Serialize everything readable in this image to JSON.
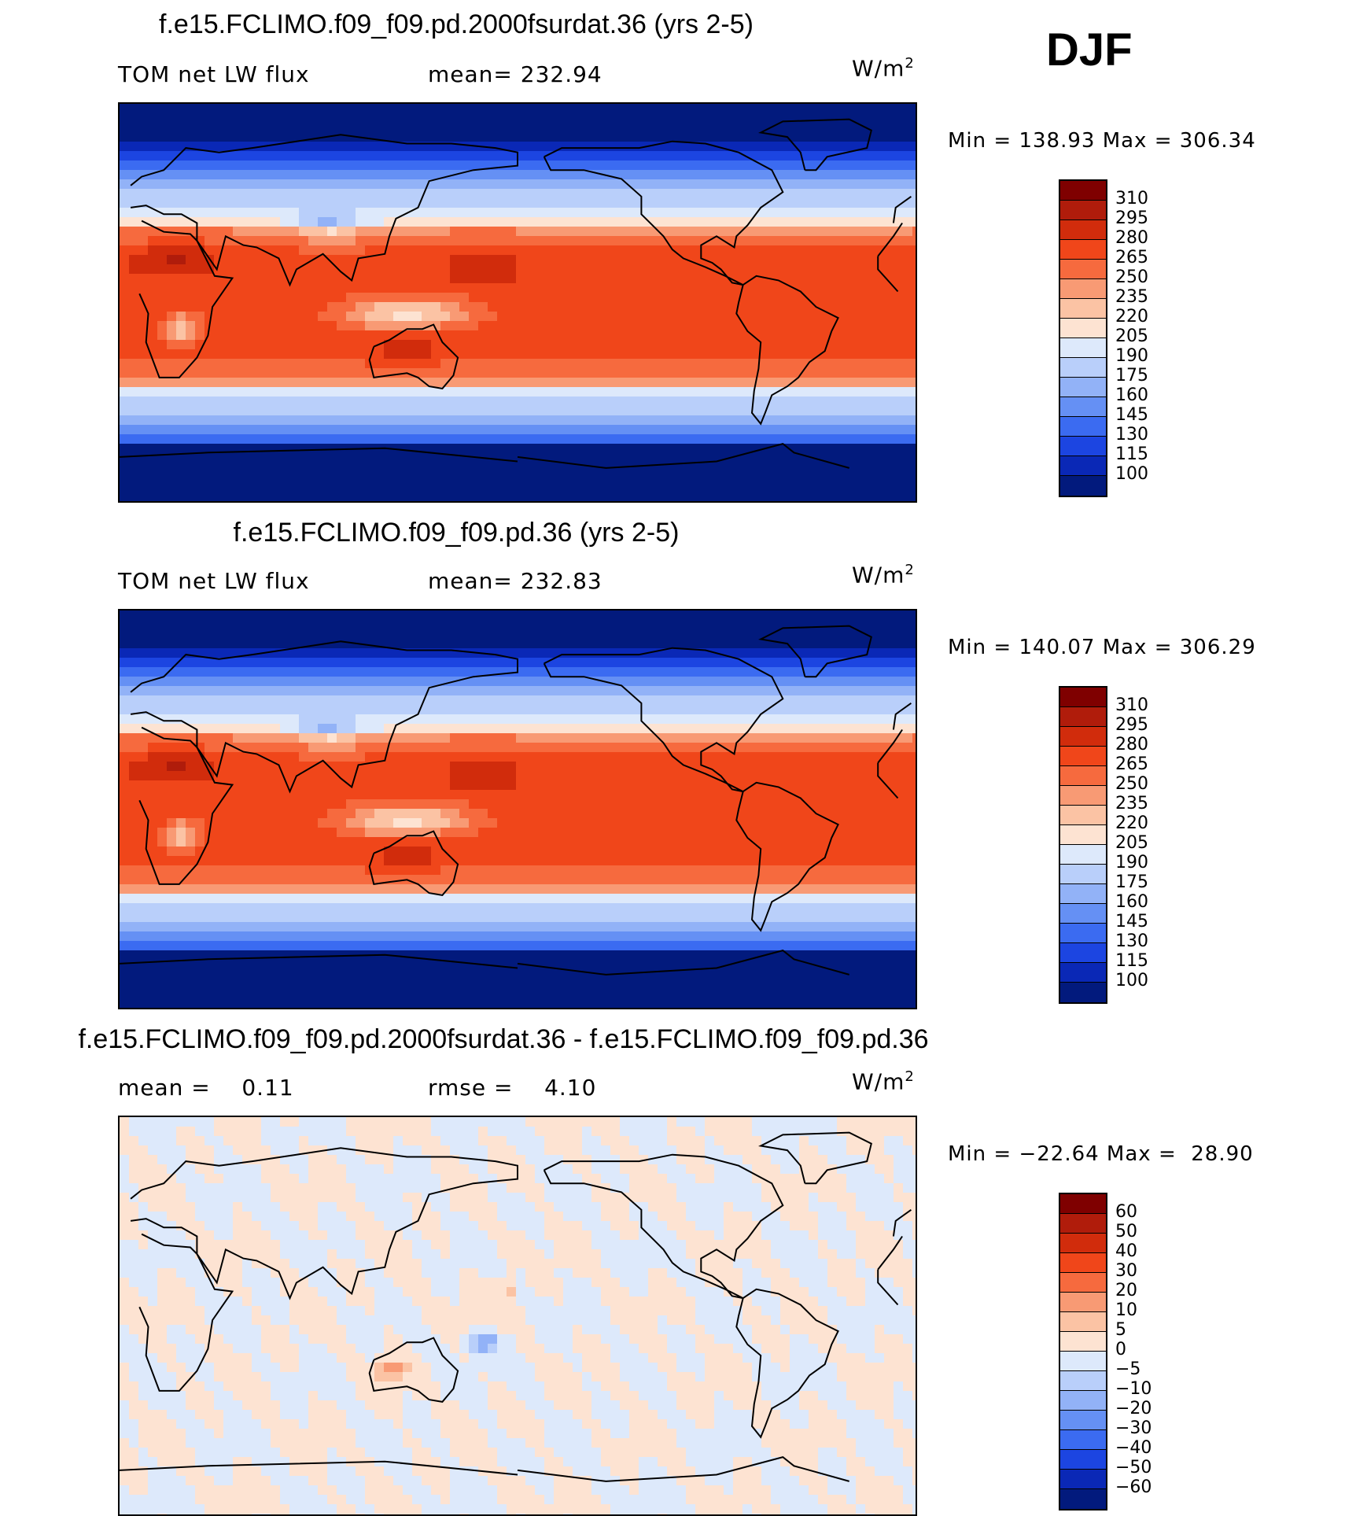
{
  "season": "DJF",
  "panels": [
    {
      "title": "f.e15.FCLIMO.f09_f09.pd.2000fsurdat.36 (yrs 2-5)",
      "left_label": "TOM net LW flux",
      "center_label": "mean= 232.94",
      "unit": "W/m",
      "unit_exp": "2",
      "minmax": "Min = 138.93 Max = 306.34",
      "colorbar_labels": [
        "310",
        "295",
        "280",
        "265",
        "250",
        "235",
        "220",
        "205",
        "190",
        "175",
        "160",
        "145",
        "130",
        "115",
        "100"
      ],
      "field": "abs"
    },
    {
      "title": "f.e15.FCLIMO.f09_f09.pd.36 (yrs 2-5)",
      "left_label": "TOM net LW flux",
      "center_label": "mean= 232.83",
      "unit": "W/m",
      "unit_exp": "2",
      "minmax": "Min = 140.07 Max = 306.29",
      "colorbar_labels": [
        "310",
        "295",
        "280",
        "265",
        "250",
        "235",
        "220",
        "205",
        "190",
        "175",
        "160",
        "145",
        "130",
        "115",
        "100"
      ],
      "field": "abs"
    },
    {
      "title": "f.e15.FCLIMO.f09_f09.pd.2000fsurdat.36 - f.e15.FCLIMO.f09_f09.pd.36",
      "left_label": "mean =    0.11",
      "center_label": "rmse =    4.10",
      "unit": "W/m",
      "unit_exp": "2",
      "minmax": "Min = −22.64 Max =  28.90",
      "colorbar_labels": [
        "60",
        "50",
        "40",
        "30",
        "20",
        "10",
        "5",
        "0",
        "−5",
        "−10",
        "−20",
        "−30",
        "−40",
        "−50",
        "−60"
      ],
      "field": "diff"
    }
  ],
  "colorbar_colors": [
    "#7f0000",
    "#b01c0b",
    "#d12c0c",
    "#f0461a",
    "#f66a3e",
    "#f89a74",
    "#fbc3a4",
    "#fde3d2",
    "#dde9fb",
    "#b9cffa",
    "#92b2f7",
    "#6590f4",
    "#3b6bf1",
    "#1c45e1",
    "#0a28b6",
    "#021a7d"
  ],
  "colors": {
    "ocean_cold": "#b9cffa",
    "warm_band": "#f0461a",
    "hot_core": "#d12c0c",
    "coast": "#000000"
  }
}
